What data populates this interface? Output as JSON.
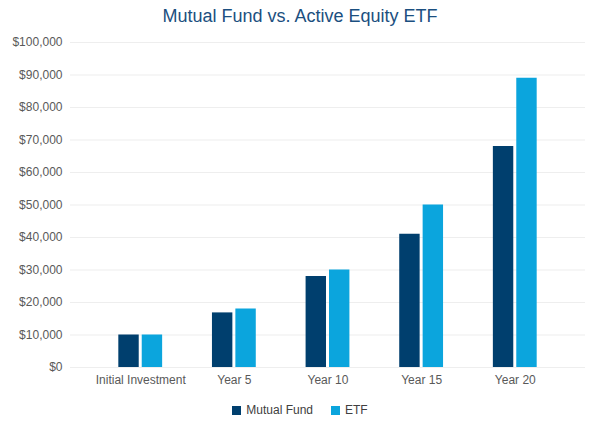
{
  "chart_data": {
    "type": "bar",
    "title": "Mutual Fund vs. Active Equity ETF",
    "categories": [
      "Initial Investment",
      "Year 5",
      "Year 10",
      "Year 15",
      "Year 20"
    ],
    "series": [
      {
        "name": "Mutual Fund",
        "color": "#003f6e",
        "values": [
          10000,
          16800,
          28000,
          41000,
          68000
        ]
      },
      {
        "name": "ETF",
        "color": "#0ba5dd",
        "values": [
          10000,
          18000,
          30000,
          50000,
          89000
        ]
      }
    ],
    "ylim": [
      0,
      100000
    ],
    "yticks": [
      {
        "value": 0,
        "label": "$0"
      },
      {
        "value": 10000,
        "label": "$10,000"
      },
      {
        "value": 20000,
        "label": "$20,000"
      },
      {
        "value": 30000,
        "label": "$30,000"
      },
      {
        "value": 40000,
        "label": "$40,000"
      },
      {
        "value": 50000,
        "label": "$50,000"
      },
      {
        "value": 60000,
        "label": "$60,000"
      },
      {
        "value": 70000,
        "label": "$70,000"
      },
      {
        "value": 80000,
        "label": "$80,000"
      },
      {
        "value": 90000,
        "label": "$90,000"
      },
      {
        "value": 100000,
        "label": "$100,000"
      }
    ],
    "grid": true,
    "legend": "bottom"
  }
}
